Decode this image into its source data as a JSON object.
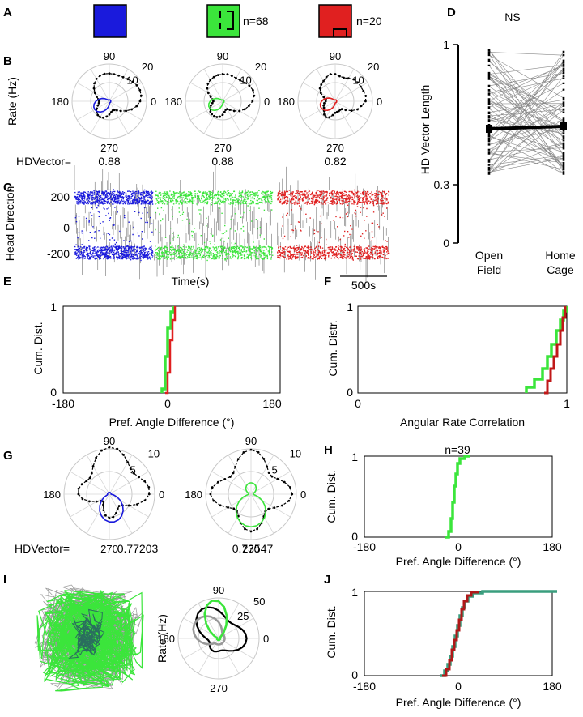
{
  "figure": {
    "panel_letters": [
      "A",
      "B",
      "C",
      "D",
      "E",
      "F",
      "G",
      "H",
      "I",
      "J"
    ],
    "colors": {
      "blue": "#1a1adc",
      "green": "#3be53b",
      "red": "#e02020",
      "dark_red": "#b01818",
      "grey": "#999999",
      "teal": "#3a9e7e",
      "black": "#000000"
    },
    "panel_a": {
      "n_green": "n=68",
      "n_red": "n=20"
    },
    "panel_b": {
      "ylabel": "Rate (Hz)",
      "angle_labels": [
        "90",
        "180",
        "0",
        "270"
      ],
      "radial_labels": [
        "20",
        "10"
      ],
      "hd_prefix": "HDVector=",
      "hd_values": [
        "0.88",
        "0.88",
        "0.82"
      ]
    },
    "panel_c": {
      "ylabel": "Head Direction",
      "yticks": [
        "200",
        "0",
        "-200"
      ],
      "xlabel": "Time(s)",
      "scalebar": "500s"
    },
    "panel_d": {
      "title": "NS",
      "ylabel": "HD Vector Length",
      "yticks": [
        "1",
        "0.3",
        "0"
      ],
      "x1_line1": "Open",
      "x1_line2": "Field",
      "x2_line1": "Home",
      "x2_line2": "Cage"
    },
    "panel_e": {
      "ylabel": "Cum. Dist.",
      "yticks": [
        "1",
        "0"
      ],
      "xticks": [
        "-180",
        "0",
        "180"
      ],
      "xlabel": "Pref. Angle Difference (°)"
    },
    "panel_f": {
      "ylabel": "Cum. Distr.",
      "yticks": [
        "1",
        "0"
      ],
      "xticks": [
        "0",
        "1"
      ],
      "xlabel": "Angular Rate Correlation"
    },
    "panel_g": {
      "angle_labels": [
        "90",
        "180",
        "0",
        "270"
      ],
      "radial_labels": [
        "10",
        "5"
      ],
      "hd_prefix": "HDVector=",
      "hd_values": [
        "0.77203",
        "0.73547"
      ]
    },
    "panel_h": {
      "title": "n=39",
      "ylabel": "Cum. Dist.",
      "yticks": [
        "1",
        "0"
      ],
      "xticks": [
        "-180",
        "0",
        "180"
      ],
      "xlabel": "Pref. Angle Difference (°)"
    },
    "panel_i": {
      "ylabel": "Rate (Hz)",
      "angle_labels": [
        "90",
        "180",
        "0",
        "270"
      ],
      "radial_labels": [
        "50",
        "25"
      ]
    },
    "panel_j": {
      "ylabel": "Cum. Dist.",
      "yticks": [
        "1",
        "0"
      ],
      "xticks": [
        "-180",
        "0",
        "180"
      ],
      "xlabel": "Pref. Angle Difference (°)"
    }
  }
}
